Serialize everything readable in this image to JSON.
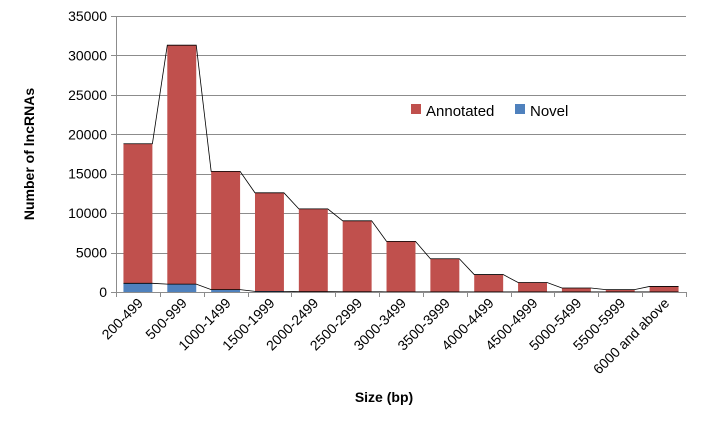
{
  "chart_data": {
    "type": "bar",
    "stacked": true,
    "xlabel": "Size (bp)",
    "ylabel": "Number of lncRNAs",
    "ylim": [
      0,
      35000
    ],
    "yticks": [
      0,
      5000,
      10000,
      15000,
      20000,
      25000,
      30000,
      35000
    ],
    "ytick_labels": [
      "0",
      "5000",
      "10000",
      "15000",
      "20000",
      "25000",
      "30000",
      "35000"
    ],
    "grid": "horizontal",
    "legend_position": "center-right",
    "categories": [
      "200-499",
      "500-999",
      "1000-1499",
      "1500-1999",
      "2000-2499",
      "2500-2999",
      "3000-3499",
      "3500-3999",
      "4000-4499",
      "4500-4999",
      "5000-5499",
      "5500-5999",
      "6000 and above"
    ],
    "series": [
      {
        "name": "Annotated",
        "color": "#C0504D",
        "values": [
          17700,
          30300,
          15000,
          12500,
          10500,
          9000,
          6400,
          4200,
          2200,
          1200,
          500,
          300,
          700
        ]
      },
      {
        "name": "Novel",
        "color": "#4F81BD",
        "values": [
          1100,
          1000,
          300,
          80,
          40,
          30,
          20,
          15,
          10,
          5,
          5,
          5,
          5
        ]
      }
    ],
    "connector_lines": true
  }
}
